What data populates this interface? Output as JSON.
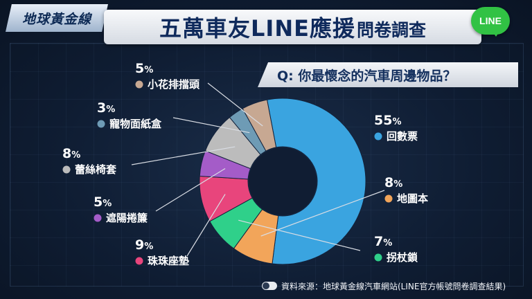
{
  "header": {
    "logo_text": "地球黃金線",
    "title_main": "五萬車友LINE應援",
    "title_sub": "問卷調查",
    "line_badge": "LINE",
    "question": "Q: 你最懷念的汽車周邊物品？"
  },
  "footer": {
    "source": "資料來源：地球黃金線汽車網站(LINE官方帳號問卷調查結果)"
  },
  "chart_data": {
    "type": "pie",
    "donut": true,
    "slices": [
      {
        "label": "回數票",
        "value": 55,
        "color": "#3aa4e0"
      },
      {
        "label": "地圖本",
        "value": 8,
        "color": "#f2a55a"
      },
      {
        "label": "拐杖鎖",
        "value": 7,
        "color": "#2fd08a"
      },
      {
        "label": "珠珠座墊",
        "value": 9,
        "color": "#e8457c"
      },
      {
        "label": "遮陽捲簾",
        "value": 5,
        "color": "#a45cc8"
      },
      {
        "label": "蕾絲椅套",
        "value": 8,
        "color": "#bcbcbc"
      },
      {
        "label": "寵物面紙盒",
        "value": 3,
        "color": "#6e9bb5"
      },
      {
        "label": "小花排擋頭",
        "value": 5,
        "color": "#c7a892"
      }
    ]
  }
}
